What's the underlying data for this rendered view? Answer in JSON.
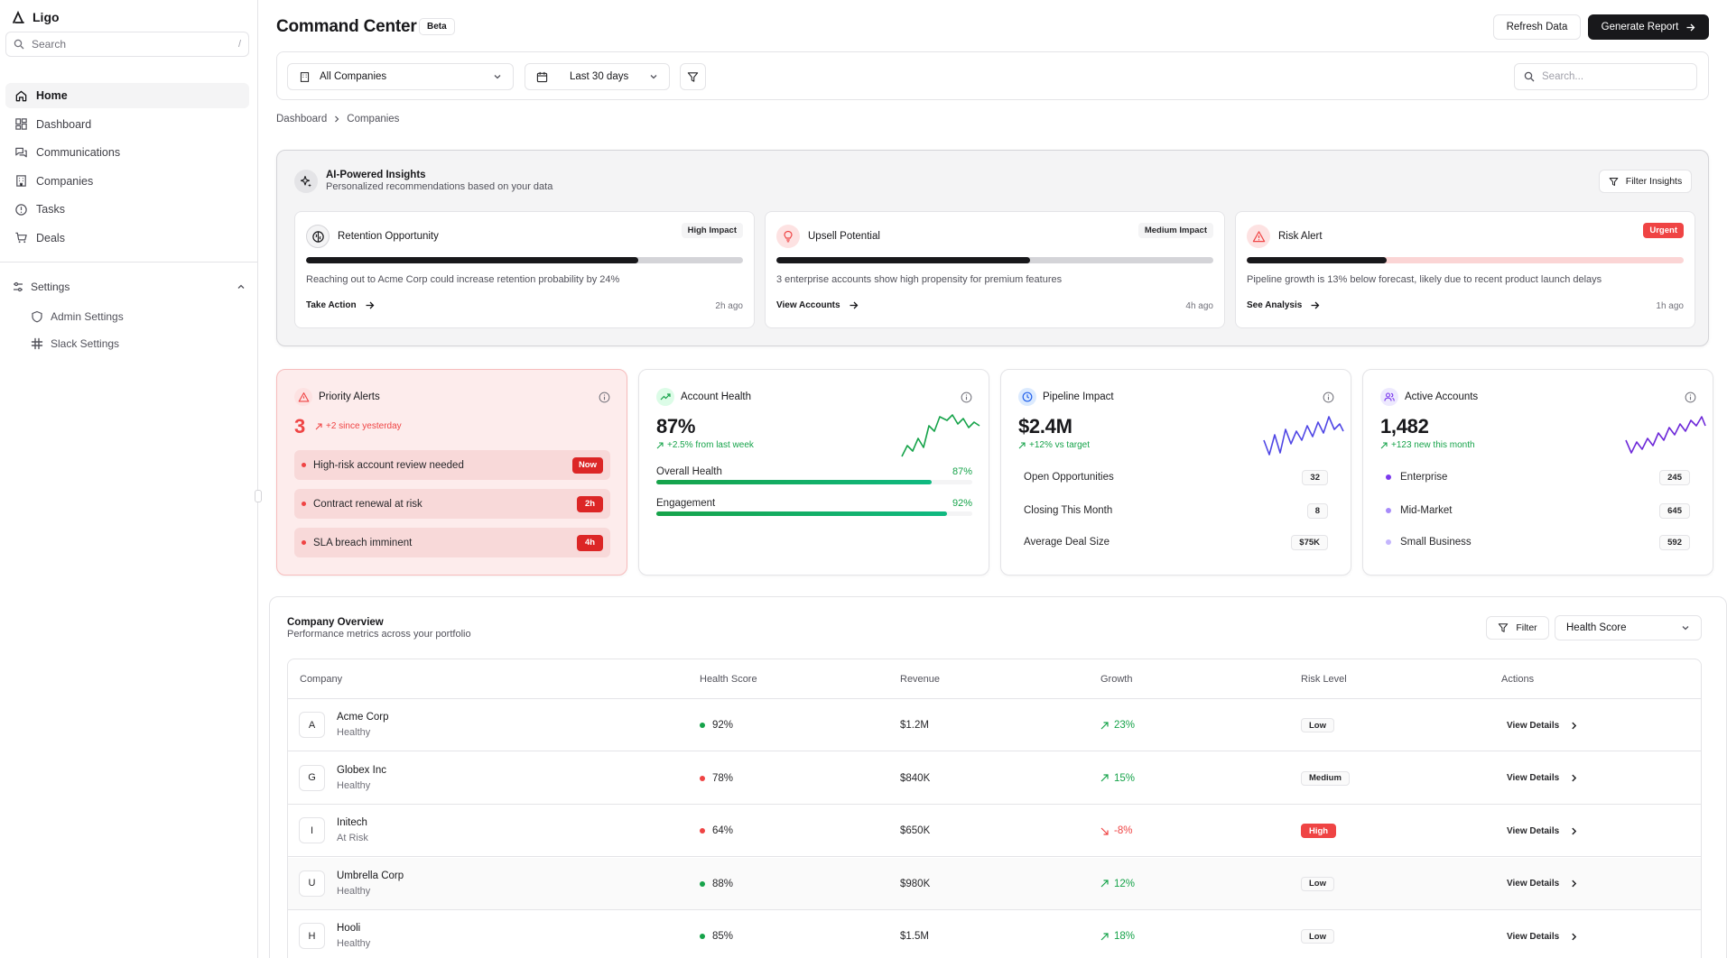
{
  "sidebar": {
    "brand": "Ligo",
    "search_placeholder": "Search",
    "search_shortcut": "/",
    "items": [
      {
        "label": "Home",
        "icon": "home-icon"
      },
      {
        "label": "Dashboard",
        "icon": "dashboard-icon"
      },
      {
        "label": "Communications",
        "icon": "chat-icon"
      },
      {
        "label": "Companies",
        "icon": "building-icon"
      },
      {
        "label": "Tasks",
        "icon": "clock-icon"
      },
      {
        "label": "Deals",
        "icon": "cart-icon"
      }
    ],
    "settings_label": "Settings",
    "settings_items": [
      {
        "label": "Admin Settings",
        "icon": "shield-icon"
      },
      {
        "label": "Slack Settings",
        "icon": "slack-icon"
      }
    ]
  },
  "header": {
    "title": "Command Center",
    "badge": "Beta",
    "refresh_label": "Refresh Data",
    "generate_label": "Generate Report"
  },
  "toolbar": {
    "company_select": "All Companies",
    "date_select": "Last 30 days",
    "search_placeholder": "Search..."
  },
  "breadcrumb": [
    "Dashboard",
    "Companies"
  ],
  "insights": {
    "title": "AI-Powered Insights",
    "subtitle": "Personalized recommendations based on your data",
    "filter_label": "Filter Insights",
    "cards": [
      {
        "title": "Retention Opportunity",
        "badge": "High Impact",
        "progress": 0.76,
        "desc": "Reaching out to Acme Corp could increase retention probability by 24%",
        "action": "Take Action",
        "time": "2h ago",
        "icon": "brain-icon"
      },
      {
        "title": "Upsell Potential",
        "badge": "Medium Impact",
        "progress": 0.58,
        "desc": "3 enterprise accounts show high propensity for premium features",
        "action": "View Accounts",
        "time": "4h ago",
        "icon": "lightbulb-icon"
      },
      {
        "title": "Risk Alert",
        "badge": "Urgent",
        "progress": 0.32,
        "desc": "Pipeline growth is 13% below forecast, likely due to recent product launch delays",
        "action": "See Analysis",
        "time": "1h ago",
        "icon": "warning-icon"
      }
    ]
  },
  "metrics": {
    "priority": {
      "title": "Priority Alerts",
      "value": "3",
      "delta": "+2 since yesterday",
      "alerts": [
        {
          "label": "High-risk account review needed",
          "tag": "Now"
        },
        {
          "label": "Contract renewal at risk",
          "tag": "2h"
        },
        {
          "label": "SLA breach imminent",
          "tag": "4h"
        }
      ]
    },
    "health": {
      "title": "Account Health",
      "value": "87%",
      "delta": "+2.5% from last week",
      "bars": [
        {
          "label": "Overall Health",
          "pct": "87%",
          "level": 0.87
        },
        {
          "label": "Engagement",
          "pct": "92%",
          "level": 0.92
        }
      ]
    },
    "pipeline": {
      "title": "Pipeline Impact",
      "value": "$2.4M",
      "delta": "+12% vs target",
      "rows": [
        {
          "label": "Open Opportunities",
          "value": "32"
        },
        {
          "label": "Closing This Month",
          "value": "8"
        },
        {
          "label": "Average Deal Size",
          "value": "$75K"
        }
      ]
    },
    "accounts": {
      "title": "Active Accounts",
      "value": "1,482",
      "delta": "+123 new this month",
      "rows": [
        {
          "label": "Enterprise",
          "value": "245",
          "color": "#7c3aed"
        },
        {
          "label": "Mid-Market",
          "value": "645",
          "color": "#a78bfa"
        },
        {
          "label": "Small Business",
          "value": "592",
          "color": "#c4b5fd"
        }
      ]
    }
  },
  "overview": {
    "title": "Company Overview",
    "subtitle": "Performance metrics across your portfolio",
    "filter_label": "Filter",
    "sort_select": "Health Score",
    "columns": [
      "Company",
      "Health Score",
      "Revenue",
      "Growth",
      "Risk Level",
      "Actions"
    ],
    "rows": [
      {
        "initial": "A",
        "name": "Acme Corp",
        "status": "Healthy",
        "health": "92%",
        "health_color": "#16a34a",
        "revenue": "$1.2M",
        "growth": "23%",
        "growth_dir": "up",
        "risk": "Low",
        "action": "View Details"
      },
      {
        "initial": "G",
        "name": "Globex Inc",
        "status": "Healthy",
        "health": "78%",
        "health_color": "#ef4444",
        "revenue": "$840K",
        "growth": "15%",
        "growth_dir": "up",
        "risk": "Medium",
        "action": "View Details"
      },
      {
        "initial": "I",
        "name": "Initech",
        "status": "At Risk",
        "health": "64%",
        "health_color": "#ef4444",
        "revenue": "$650K",
        "growth": "-8%",
        "growth_dir": "down",
        "risk": "High",
        "action": "View Details"
      },
      {
        "initial": "U",
        "name": "Umbrella Corp",
        "status": "Healthy",
        "health": "88%",
        "health_color": "#16a34a",
        "revenue": "$980K",
        "growth": "12%",
        "growth_dir": "up",
        "risk": "Low",
        "action": "View Details"
      },
      {
        "initial": "H",
        "name": "Hooli",
        "status": "Healthy",
        "health": "85%",
        "health_color": "#16a34a",
        "revenue": "$1.5M",
        "growth": "18%",
        "growth_dir": "up",
        "risk": "Low",
        "action": "View Details"
      }
    ]
  },
  "colors": {
    "accent_dark": "#18181b",
    "positive": "#16a34a",
    "negative": "#ef4444",
    "alert_bg": "#fdecec",
    "purple": "#6d28d9",
    "blue": "#2563eb"
  }
}
